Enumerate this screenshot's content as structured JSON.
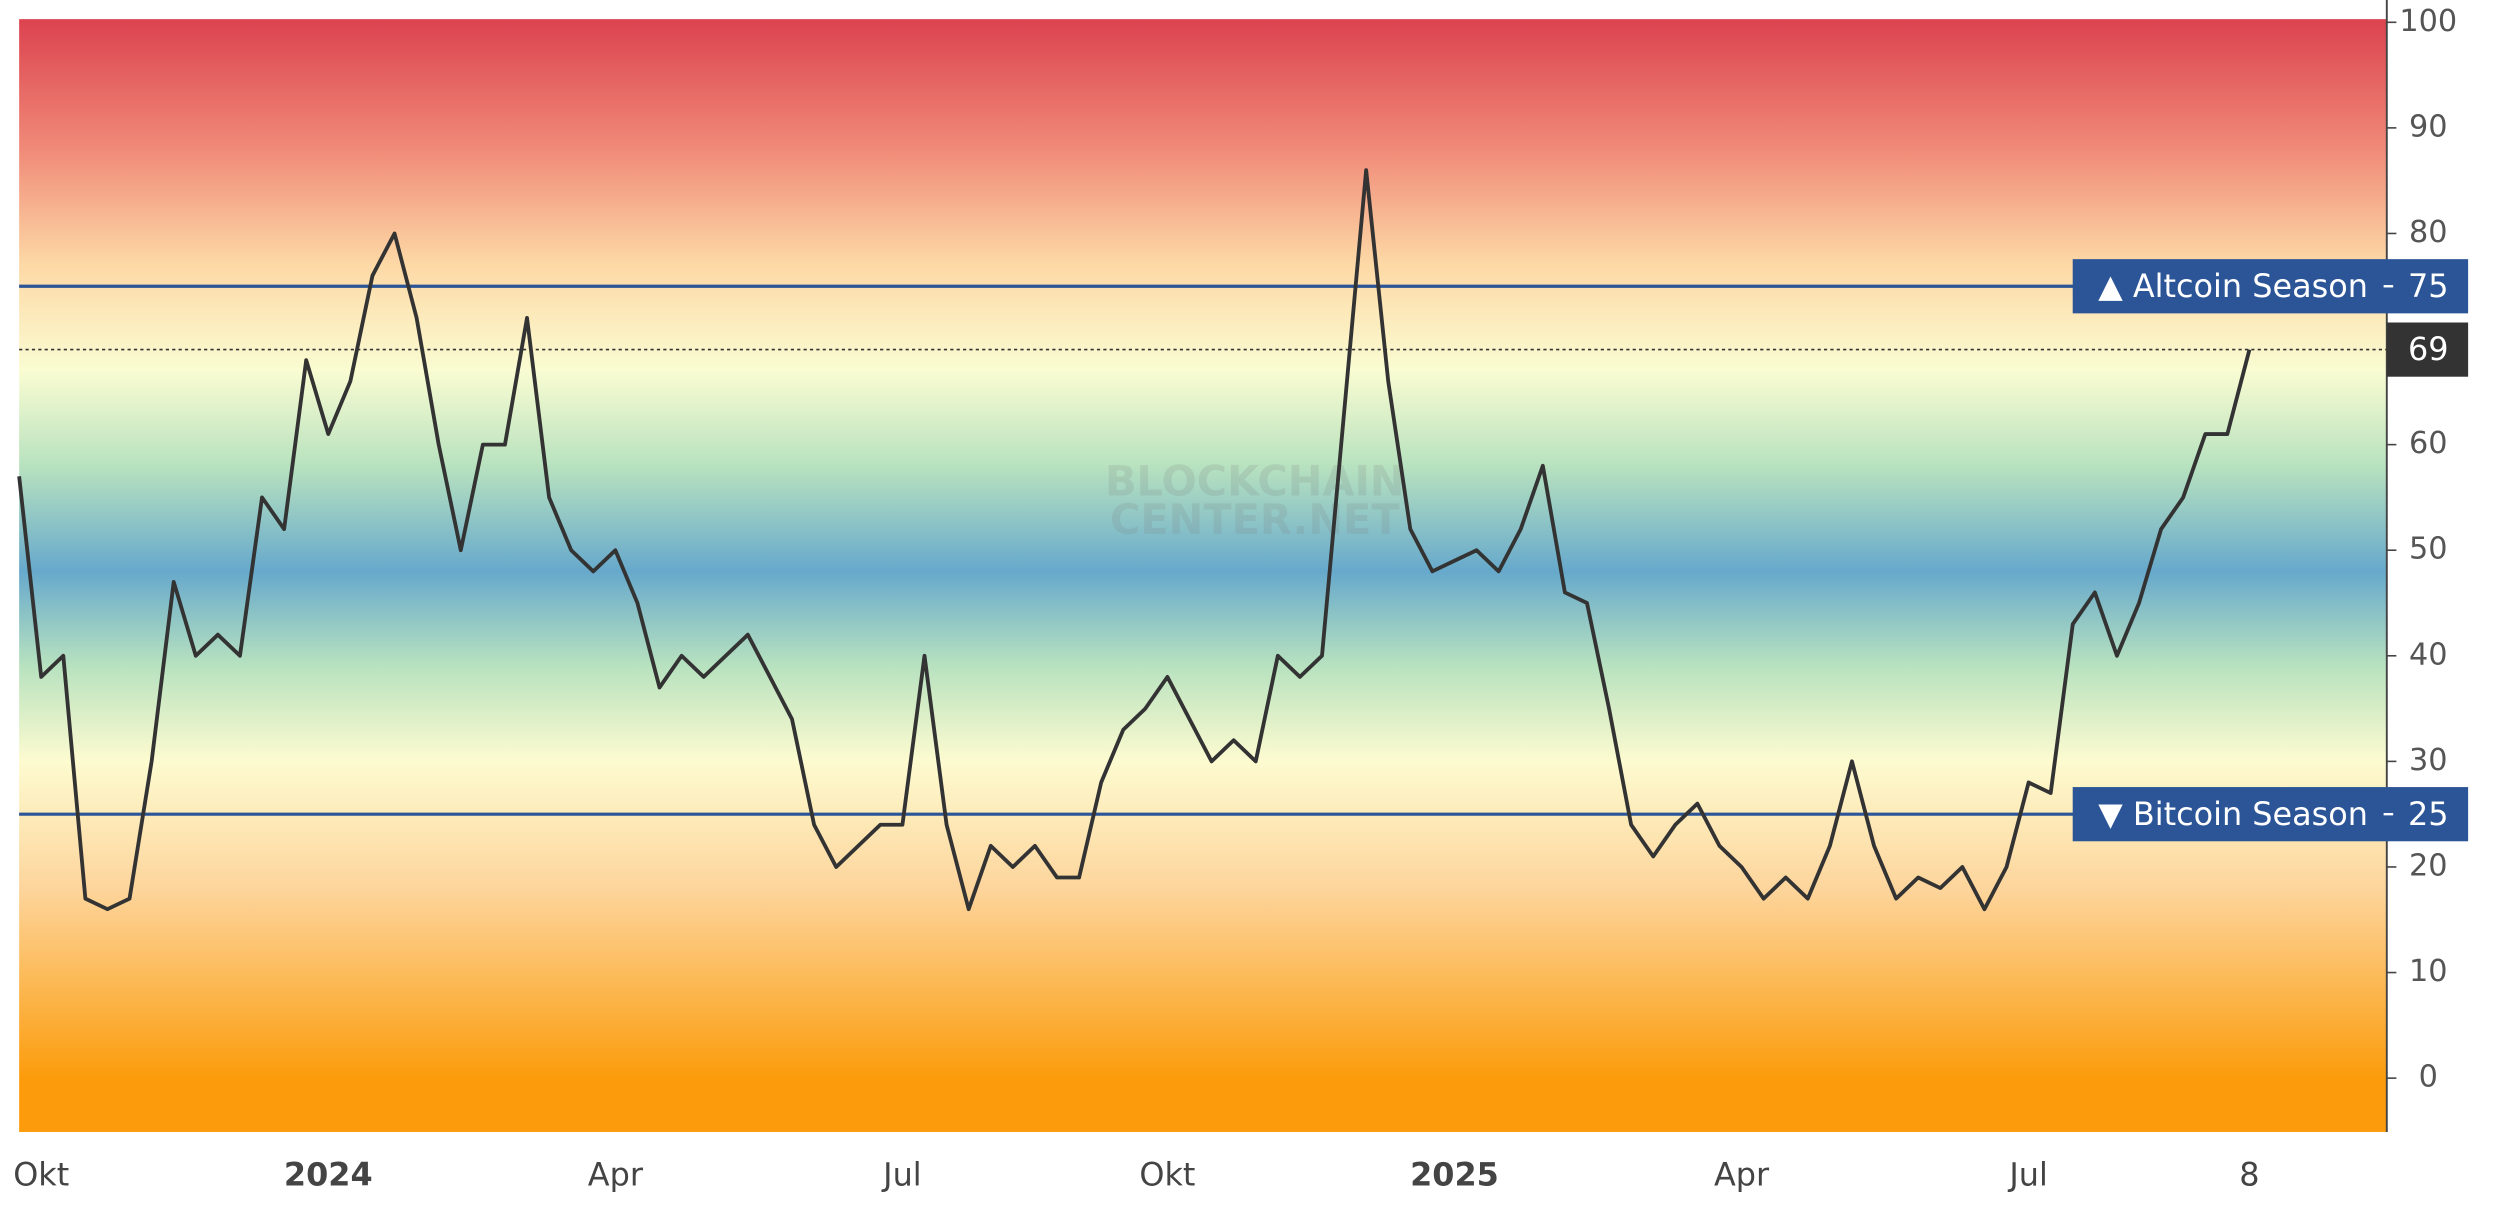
{
  "chart_data": {
    "type": "line",
    "watermark": [
      "BLOCKCHAIN",
      "CENTER.NET"
    ],
    "categories": [
      null,
      "Okt",
      null,
      null,
      null,
      null,
      null,
      null,
      null,
      null,
      null,
      null,
      null,
      null,
      "2024",
      null,
      null,
      null,
      null,
      null,
      null,
      null,
      null,
      null,
      null,
      null,
      null,
      "Apr",
      null,
      null,
      null,
      null,
      null,
      null,
      null,
      null,
      null,
      null,
      null,
      null,
      "Jul",
      null,
      null,
      null,
      null,
      null,
      null,
      null,
      null,
      null,
      null,
      null,
      "Okt",
      null,
      null,
      null,
      null,
      null,
      null,
      null,
      null,
      null,
      null,
      null,
      null,
      "2025",
      null,
      null,
      null,
      null,
      null,
      null,
      null,
      null,
      null,
      null,
      null,
      null,
      "Apr",
      null,
      null,
      null,
      null,
      null,
      null,
      null,
      null,
      null,
      null,
      null,
      null,
      "Jul",
      null,
      null,
      null,
      null,
      null,
      null,
      null,
      null,
      null,
      "8"
    ],
    "values": [
      57,
      38,
      40,
      17,
      16,
      17,
      30,
      47,
      40,
      42,
      40,
      55,
      52,
      68,
      61,
      66,
      76,
      80,
      72,
      60,
      50,
      60,
      60,
      72,
      55,
      50,
      48,
      50,
      45,
      37,
      40,
      38,
      40,
      42,
      38,
      34,
      24,
      20,
      22,
      24,
      24,
      40,
      24,
      16,
      22,
      20,
      22,
      19,
      19,
      28,
      33,
      35,
      38,
      34,
      30,
      32,
      30,
      40,
      38,
      40,
      63,
      86,
      66,
      52,
      48,
      49,
      50,
      48,
      52,
      58,
      46,
      45,
      35,
      24,
      21,
      24,
      26,
      22,
      20,
      17,
      19,
      17,
      22,
      30,
      22,
      17,
      19,
      18,
      20,
      16,
      20,
      28,
      27,
      43,
      46,
      40,
      45,
      52,
      55,
      61,
      61,
      69
    ],
    "color": "#333333",
    "ylim": [
      -5.1,
      100.3
    ],
    "yticks": [
      0,
      10,
      20,
      30,
      40,
      50,
      60,
      70,
      80,
      90,
      100
    ],
    "thresholds": [
      {
        "name": "▲ Altcoin Season",
        "value": 75,
        "color": "#2b5597"
      },
      {
        "name": "▼ Bitcoin Season",
        "value": 25,
        "color": "#2b5597"
      }
    ],
    "background": [
      {
        "value": 100,
        "color": "#dc4450"
      },
      {
        "value": 88,
        "color": "#f08a78"
      },
      {
        "value": 77,
        "color": "#fdd9a6"
      },
      {
        "value": 67,
        "color": "#fafcd2"
      },
      {
        "value": 58,
        "color": "#b8e2bf"
      },
      {
        "value": 48,
        "color": "#67a9cc"
      },
      {
        "value": 39,
        "color": "#b8e2bf"
      },
      {
        "value": 30,
        "color": "#fdfbd0"
      },
      {
        "value": 18,
        "color": "#fdd59c"
      },
      {
        "value": 0,
        "color": "#fc9c0c"
      }
    ]
  }
}
